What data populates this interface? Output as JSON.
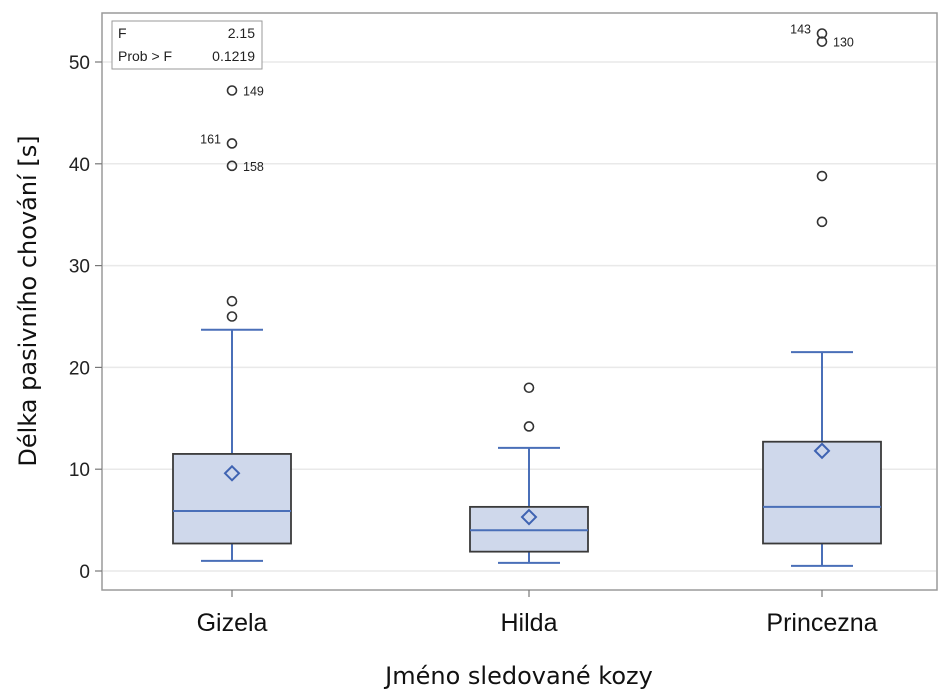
{
  "chart_data": {
    "type": "boxplot",
    "xlabel": "Jméno sledované kozy",
    "ylabel": "Délka pasivního chování [s]",
    "ylim": [
      -2,
      55
    ],
    "yticks": [
      0,
      10,
      20,
      30,
      40,
      50
    ],
    "grid": true,
    "categories": [
      "Gizela",
      "Hilda",
      "Princezna"
    ],
    "boxes": [
      {
        "category": "Gizela",
        "whisker_low": 1.0,
        "q1": 2.7,
        "median": 5.9,
        "q3": 11.5,
        "whisker_high": 23.7,
        "mean": 9.6,
        "outliers": [
          {
            "value": 25.0,
            "label": ""
          },
          {
            "value": 26.5,
            "label": ""
          },
          {
            "value": 39.8,
            "label": "158",
            "label_side": "right"
          },
          {
            "value": 42.0,
            "label": "161",
            "label_side": "left"
          },
          {
            "value": 47.2,
            "label": "149",
            "label_side": "right"
          }
        ]
      },
      {
        "category": "Hilda",
        "whisker_low": 0.8,
        "q1": 1.9,
        "median": 4.0,
        "q3": 6.3,
        "whisker_high": 12.1,
        "mean": 5.3,
        "outliers": [
          {
            "value": 14.2,
            "label": ""
          },
          {
            "value": 18.0,
            "label": ""
          }
        ]
      },
      {
        "category": "Princezna",
        "whisker_low": 0.5,
        "q1": 2.7,
        "median": 6.3,
        "q3": 12.7,
        "whisker_high": 21.5,
        "mean": 11.8,
        "outliers": [
          {
            "value": 34.3,
            "label": ""
          },
          {
            "value": 38.8,
            "label": ""
          },
          {
            "value": 52.0,
            "label": "130",
            "label_side": "right"
          },
          {
            "value": 52.8,
            "label": "143",
            "label_side": "left"
          }
        ]
      }
    ],
    "stats_inset": {
      "rows": [
        {
          "name": "F",
          "value": "2.15"
        },
        {
          "name": "Prob > F",
          "value": "0.1219"
        }
      ]
    },
    "colors": {
      "box_fill": "#cfd8eb",
      "box_stroke": "#3a3a3a",
      "whisker": "#4a6fb8",
      "median": "#4a6fb8",
      "mean_marker": "#3f63b2",
      "outlier": "#333333",
      "grid": "#e9e9e9"
    }
  }
}
